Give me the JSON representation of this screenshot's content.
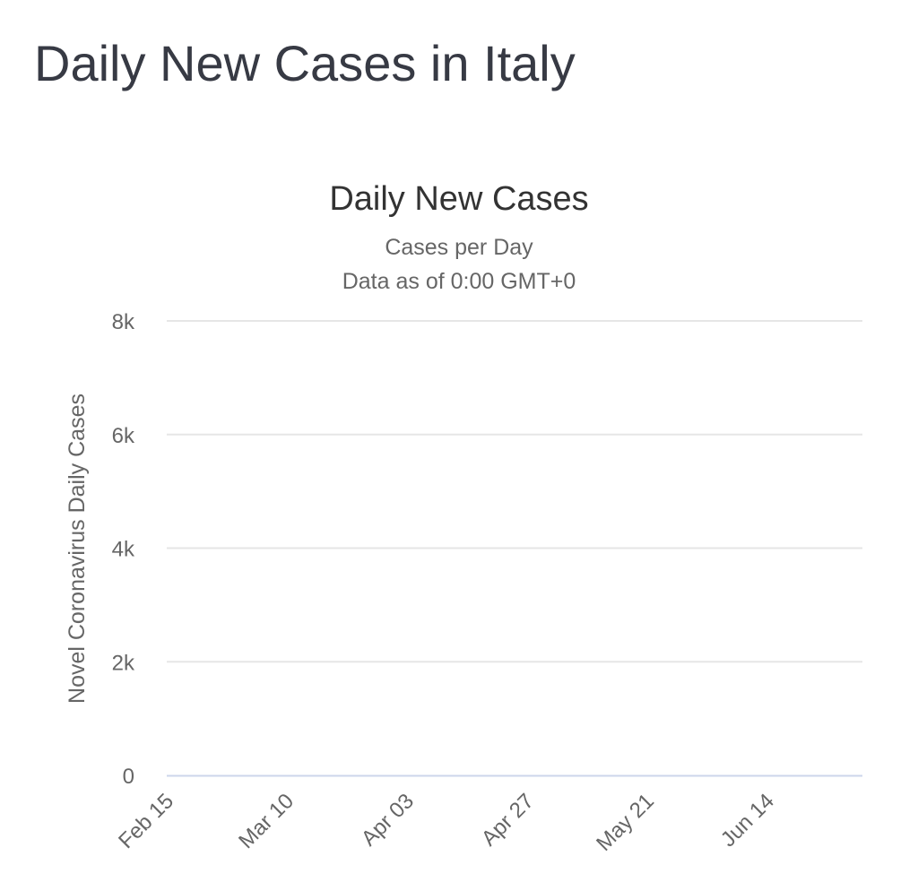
{
  "page": {
    "title": "Daily New Cases in Italy"
  },
  "chart_data": {
    "type": "bar",
    "title": "Daily New Cases",
    "subtitle": [
      "Cases per Day",
      "Data as of 0:00 GMT+0"
    ],
    "ylabel": "Novel Coronavirus Daily Cases",
    "xlabel": "",
    "ylim": [
      0,
      8000
    ],
    "yticks": [
      0,
      2000,
      4000,
      6000,
      8000
    ],
    "ytick_labels": [
      "0",
      "2k",
      "4k",
      "6k",
      "8k"
    ],
    "grid": true,
    "x_start": "2020-02-15",
    "x_end": "2020-07-02",
    "xticks": [
      {
        "label": "Feb 15",
        "date": "2020-02-15"
      },
      {
        "label": "Mar 10",
        "date": "2020-03-10"
      },
      {
        "label": "Apr 03",
        "date": "2020-04-03"
      },
      {
        "label": "Apr 27",
        "date": "2020-04-27"
      },
      {
        "label": "May 21",
        "date": "2020-05-21"
      },
      {
        "label": "Jun 14",
        "date": "2020-06-14"
      }
    ],
    "colors": {
      "bar": "#999999",
      "grid": "#e6e6e6",
      "baseline": "#ccd6eb",
      "text": "#333333",
      "muted": "#666666"
    },
    "series": [
      {
        "x": [
          "2020-02-15",
          "2020-02-16",
          "2020-02-17",
          "2020-02-18",
          "2020-02-19",
          "2020-02-20",
          "2020-02-21",
          "2020-02-22",
          "2020-02-23",
          "2020-02-24",
          "2020-02-25",
          "2020-02-26",
          "2020-02-27",
          "2020-02-28",
          "2020-02-29",
          "2020-03-01",
          "2020-03-02",
          "2020-03-03",
          "2020-03-04",
          "2020-03-05",
          "2020-03-06",
          "2020-03-07",
          "2020-03-08",
          "2020-03-09",
          "2020-03-10",
          "2020-03-11",
          "2020-03-12",
          "2020-03-13",
          "2020-03-14",
          "2020-03-15",
          "2020-03-16",
          "2020-03-17",
          "2020-03-18",
          "2020-03-19",
          "2020-03-20",
          "2020-03-21",
          "2020-03-22",
          "2020-03-23",
          "2020-03-24",
          "2020-03-25",
          "2020-03-26",
          "2020-03-27",
          "2020-03-28",
          "2020-03-29",
          "2020-03-30",
          "2020-03-31",
          "2020-04-01",
          "2020-04-02",
          "2020-04-03",
          "2020-04-04",
          "2020-04-05",
          "2020-04-06",
          "2020-04-07",
          "2020-04-08",
          "2020-04-09",
          "2020-04-10",
          "2020-04-11",
          "2020-04-12",
          "2020-04-13",
          "2020-04-14",
          "2020-04-15",
          "2020-04-16",
          "2020-04-17",
          "2020-04-18",
          "2020-04-19",
          "2020-04-20",
          "2020-04-21",
          "2020-04-22",
          "2020-04-23",
          "2020-04-24",
          "2020-04-25",
          "2020-04-26",
          "2020-04-27",
          "2020-04-28",
          "2020-04-29",
          "2020-04-30",
          "2020-05-01",
          "2020-05-02",
          "2020-05-03",
          "2020-05-04",
          "2020-05-05",
          "2020-05-06",
          "2020-05-07",
          "2020-05-08",
          "2020-05-09",
          "2020-05-10",
          "2020-05-11",
          "2020-05-12",
          "2020-05-13",
          "2020-05-14",
          "2020-05-15",
          "2020-05-16",
          "2020-05-17",
          "2020-05-18",
          "2020-05-19",
          "2020-05-20",
          "2020-05-21",
          "2020-05-22",
          "2020-05-23",
          "2020-05-24",
          "2020-05-25",
          "2020-05-26",
          "2020-05-27",
          "2020-05-28",
          "2020-05-29",
          "2020-05-30",
          "2020-05-31",
          "2020-06-01",
          "2020-06-02",
          "2020-06-03",
          "2020-06-04",
          "2020-06-05",
          "2020-06-06",
          "2020-06-07",
          "2020-06-08",
          "2020-06-09",
          "2020-06-10",
          "2020-06-11",
          "2020-06-12",
          "2020-06-13",
          "2020-06-14",
          "2020-06-15",
          "2020-06-16",
          "2020-06-17",
          "2020-06-18",
          "2020-06-19",
          "2020-06-20",
          "2020-06-21",
          "2020-06-22",
          "2020-06-23",
          "2020-06-24",
          "2020-06-25",
          "2020-06-26",
          "2020-06-27",
          "2020-06-28",
          "2020-06-29",
          "2020-06-30",
          "2020-07-01",
          "2020-07-02"
        ],
        "values": [
          0,
          0,
          0,
          0,
          0,
          0,
          0,
          0,
          0,
          0,
          0,
          0,
          0,
          0,
          0,
          0,
          0,
          0,
          0,
          0,
          0,
          0,
          0,
          0,
          0,
          0,
          0,
          0,
          0,
          0,
          0,
          0,
          0,
          0,
          0,
          0,
          0,
          0,
          0,
          0,
          0,
          0,
          0,
          0,
          0,
          0,
          0,
          0,
          0,
          0,
          0,
          0,
          0,
          0,
          0,
          0,
          0,
          0,
          0,
          0,
          0,
          0,
          0,
          0,
          0,
          0,
          0,
          0,
          0,
          0,
          0,
          0,
          0,
          0,
          0,
          0,
          0,
          0,
          0,
          0,
          0,
          0,
          0,
          0,
          0,
          0,
          0,
          0,
          0,
          0,
          0,
          0,
          0,
          0,
          0,
          0,
          0,
          0,
          0,
          0,
          0,
          0,
          0,
          0,
          0,
          0,
          0,
          0,
          0,
          0,
          0,
          0,
          0,
          0,
          0,
          0,
          0,
          0,
          0,
          0,
          0,
          0,
          0,
          0,
          0,
          0,
          0,
          0,
          0,
          0,
          0,
          0,
          0,
          0,
          0,
          0,
          0,
          0,
          0
        ]
      }
    ]
  }
}
